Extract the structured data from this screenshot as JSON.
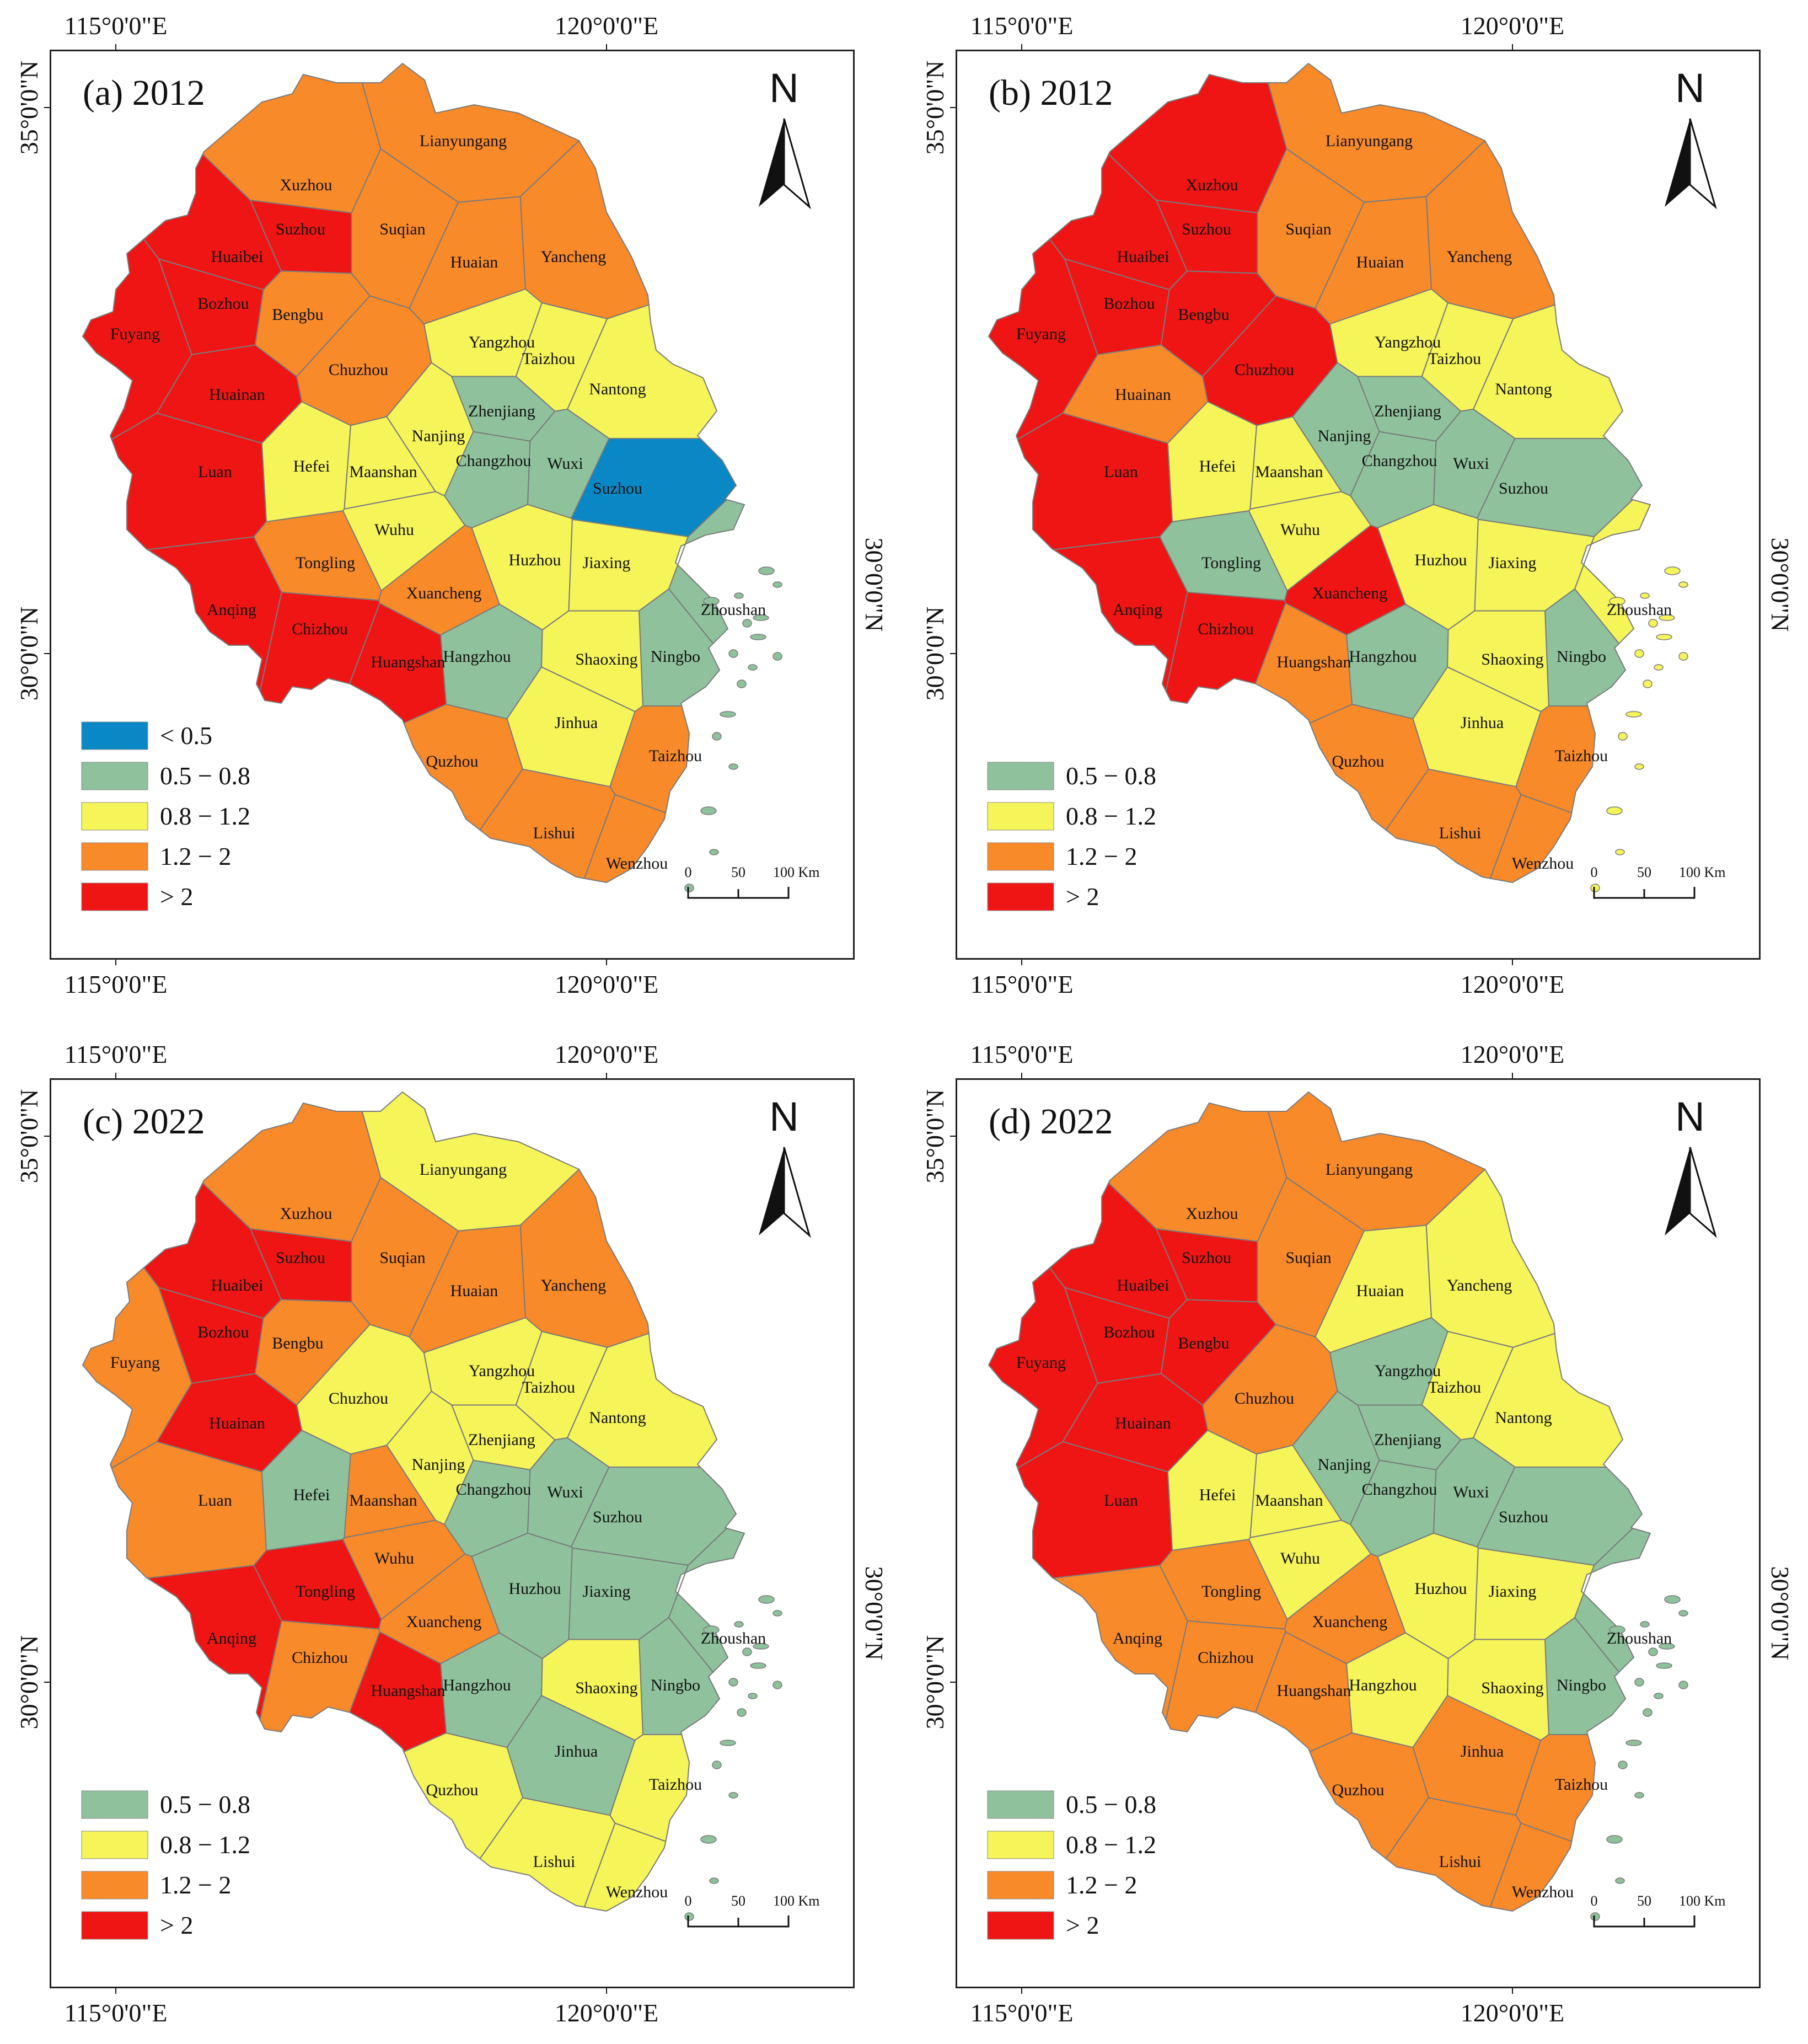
{
  "colors": {
    "lt05": "#0a88c6",
    "c05_08": "#8fc29c",
    "c08_12": "#f5f55a",
    "c12_2": "#f98a2a",
    "gt2": "#f01515",
    "region_stroke": "#7a7a7a",
    "frame": "#222222"
  },
  "axes": {
    "lon_left": "115°0'0\"E",
    "lon_right": "120°0'0\"E",
    "lat_top": "35°0'0\"N",
    "lat_bottom": "30°0'0\"N"
  },
  "scale_bar": {
    "t0": "0",
    "t1": "50",
    "t2": "100 Km"
  },
  "north_label": "N",
  "legend_labels": {
    "lt05": "< 0.5",
    "c05_08": "0.5 − 0.8",
    "c08_12": "0.8 − 1.2",
    "c12_2": "1.2 − 2",
    "gt2": "> 2"
  },
  "chart_data": [
    {
      "type": "choropleth",
      "title": "(a) 2012",
      "legend": [
        "lt05",
        "c05_08",
        "c08_12",
        "c12_2",
        "gt2"
      ],
      "classes": {
        "Xuzhou": "c12_2",
        "Lianyungang": "c12_2",
        "Suzhou_AH": "gt2",
        "Suqian": "c12_2",
        "Huaibei": "gt2",
        "Huaian": "c12_2",
        "Yancheng": "c12_2",
        "Bozhou": "gt2",
        "Bengbu": "c12_2",
        "Fuyang": "gt2",
        "Yangzhou": "c08_12",
        "Taizhou_JS": "c08_12",
        "Chuzhou": "c12_2",
        "Huainan": "gt2",
        "Nantong": "c08_12",
        "Zhenjiang": "c05_08",
        "Nanjing": "c08_12",
        "Changzhou": "c05_08",
        "Wuxi": "c05_08",
        "Suzhou_JS": "lt05",
        "Hefei": "c08_12",
        "Maanshan": "c08_12",
        "Luan": "gt2",
        "Wuhu": "c08_12",
        "Tongling": "c12_2",
        "Huzhou": "c08_12",
        "Jiaxing": "c08_12",
        "Xuancheng": "c12_2",
        "Anqing": "gt2",
        "Zhoushan": "c05_08",
        "Chizhou": "gt2",
        "Hangzhou": "c05_08",
        "Shaoxing": "c08_12",
        "Ningbo": "c05_08",
        "Huangshan": "gt2",
        "Jinhua": "c08_12",
        "Quzhou": "c12_2",
        "Taizhou_ZJ": "c12_2",
        "Lishui": "c12_2",
        "Wenzhou": "c12_2"
      }
    },
    {
      "type": "choropleth",
      "title": "(b) 2012",
      "legend": [
        "c05_08",
        "c08_12",
        "c12_2",
        "gt2"
      ],
      "classes": {
        "Xuzhou": "gt2",
        "Lianyungang": "c12_2",
        "Suzhou_AH": "gt2",
        "Suqian": "c12_2",
        "Huaibei": "gt2",
        "Huaian": "c12_2",
        "Yancheng": "c12_2",
        "Bozhou": "gt2",
        "Bengbu": "gt2",
        "Fuyang": "gt2",
        "Yangzhou": "c08_12",
        "Taizhou_JS": "c08_12",
        "Chuzhou": "gt2",
        "Huainan": "c12_2",
        "Nantong": "c08_12",
        "Zhenjiang": "c05_08",
        "Nanjing": "c05_08",
        "Changzhou": "c05_08",
        "Wuxi": "c05_08",
        "Suzhou_JS": "c05_08",
        "Hefei": "c08_12",
        "Maanshan": "c08_12",
        "Luan": "gt2",
        "Wuhu": "c08_12",
        "Tongling": "c05_08",
        "Huzhou": "c08_12",
        "Jiaxing": "c08_12",
        "Xuancheng": "gt2",
        "Anqing": "gt2",
        "Zhoushan": "c08_12",
        "Chizhou": "gt2",
        "Hangzhou": "c05_08",
        "Shaoxing": "c08_12",
        "Ningbo": "c05_08",
        "Huangshan": "c12_2",
        "Jinhua": "c08_12",
        "Quzhou": "c12_2",
        "Taizhou_ZJ": "c12_2",
        "Lishui": "c12_2",
        "Wenzhou": "c12_2"
      }
    },
    {
      "type": "choropleth",
      "title": "(c) 2022",
      "legend": [
        "c05_08",
        "c08_12",
        "c12_2",
        "gt2"
      ],
      "classes": {
        "Xuzhou": "c12_2",
        "Lianyungang": "c08_12",
        "Suzhou_AH": "gt2",
        "Suqian": "c12_2",
        "Huaibei": "gt2",
        "Huaian": "c12_2",
        "Yancheng": "c12_2",
        "Bozhou": "gt2",
        "Bengbu": "c12_2",
        "Fuyang": "c12_2",
        "Yangzhou": "c08_12",
        "Taizhou_JS": "c08_12",
        "Chuzhou": "c08_12",
        "Huainan": "gt2",
        "Nantong": "c08_12",
        "Zhenjiang": "c08_12",
        "Nanjing": "c08_12",
        "Changzhou": "c05_08",
        "Wuxi": "c05_08",
        "Suzhou_JS": "c05_08",
        "Hefei": "c05_08",
        "Maanshan": "c12_2",
        "Luan": "c12_2",
        "Wuhu": "c12_2",
        "Tongling": "gt2",
        "Huzhou": "c05_08",
        "Jiaxing": "c05_08",
        "Xuancheng": "c12_2",
        "Anqing": "gt2",
        "Zhoushan": "c05_08",
        "Chizhou": "c12_2",
        "Hangzhou": "c05_08",
        "Shaoxing": "c08_12",
        "Ningbo": "c05_08",
        "Huangshan": "gt2",
        "Jinhua": "c05_08",
        "Quzhou": "c08_12",
        "Taizhou_ZJ": "c08_12",
        "Lishui": "c08_12",
        "Wenzhou": "c08_12"
      }
    },
    {
      "type": "choropleth",
      "title": "(d) 2022",
      "legend": [
        "c05_08",
        "c08_12",
        "c12_2",
        "gt2"
      ],
      "classes": {
        "Xuzhou": "c12_2",
        "Lianyungang": "c12_2",
        "Suzhou_AH": "gt2",
        "Suqian": "c12_2",
        "Huaibei": "gt2",
        "Huaian": "c08_12",
        "Yancheng": "c08_12",
        "Bozhou": "gt2",
        "Bengbu": "gt2",
        "Fuyang": "gt2",
        "Yangzhou": "c05_08",
        "Taizhou_JS": "c08_12",
        "Chuzhou": "c12_2",
        "Huainan": "gt2",
        "Nantong": "c08_12",
        "Zhenjiang": "c05_08",
        "Nanjing": "c05_08",
        "Changzhou": "c05_08",
        "Wuxi": "c05_08",
        "Suzhou_JS": "c05_08",
        "Hefei": "c08_12",
        "Maanshan": "c08_12",
        "Luan": "gt2",
        "Wuhu": "c08_12",
        "Tongling": "c12_2",
        "Huzhou": "c08_12",
        "Jiaxing": "c08_12",
        "Xuancheng": "c12_2",
        "Anqing": "c12_2",
        "Zhoushan": "c05_08",
        "Chizhou": "c12_2",
        "Hangzhou": "c08_12",
        "Shaoxing": "c08_12",
        "Ningbo": "c05_08",
        "Huangshan": "c12_2",
        "Jinhua": "c12_2",
        "Quzhou": "c12_2",
        "Taizhou_ZJ": "c12_2",
        "Lishui": "c12_2",
        "Wenzhou": "c12_2"
      }
    }
  ],
  "cities": {
    "Xuzhou": "Xuzhou",
    "Lianyungang": "Lianyungang",
    "Suzhou_AH": "Suzhou",
    "Suqian": "Suqian",
    "Huaibei": "Huaibei",
    "Huaian": "Huaian",
    "Yancheng": "Yancheng",
    "Bozhou": "Bozhou",
    "Bengbu": "Bengbu",
    "Fuyang": "Fuyang",
    "Yangzhou": "Yangzhou",
    "Taizhou_JS": "Taizhou",
    "Chuzhou": "Chuzhou",
    "Huainan": "Huainan",
    "Nantong": "Nantong",
    "Zhenjiang": "Zhenjiang",
    "Nanjing": "Nanjing",
    "Changzhou": "Changzhou",
    "Wuxi": "Wuxi",
    "Suzhou_JS": "Suzhou",
    "Hefei": "Hefei",
    "Maanshan": "Maanshan",
    "Luan": "Luan",
    "Wuhu": "Wuhu",
    "Tongling": "Tongling",
    "Huzhou": "Huzhou",
    "Jiaxing": "Jiaxing",
    "Xuancheng": "Xuancheng",
    "Anqing": "Anqing",
    "Zhoushan": "Zhoushan",
    "Chizhou": "Chizhou",
    "Hangzhou": "Hangzhou",
    "Shaoxing": "Shaoxing",
    "Ningbo": "Ningbo",
    "Huangshan": "Huangshan",
    "Jinhua": "Jinhua",
    "Quzhou": "Quzhou",
    "Taizhou_ZJ": "Taizhou",
    "Lishui": "Lishui",
    "Wenzhou": "Wenzhou"
  }
}
